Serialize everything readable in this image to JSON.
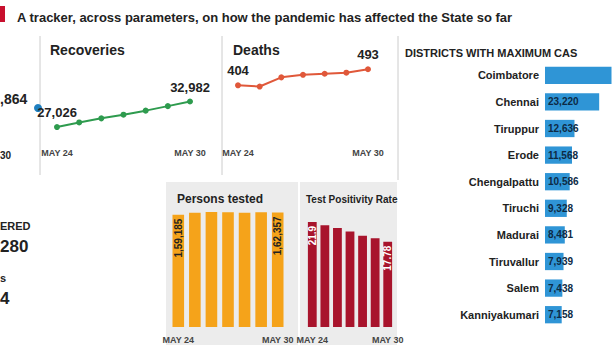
{
  "header": {
    "title": "A tracker, across parameters, on how the pandemic has affected the State so far"
  },
  "fragments": [
    ",864",
    "30",
    "ERED",
    "280",
    "s",
    "4"
  ],
  "chart_data": [
    {
      "type": "line",
      "title": "Recoveries",
      "categories": [
        "MAY 24",
        null,
        null,
        null,
        null,
        null,
        "MAY 30"
      ],
      "values": [
        27026,
        28100,
        29050,
        29900,
        30850,
        31900,
        32982
      ],
      "value_labels": [
        "27,026",
        null,
        null,
        null,
        null,
        null,
        "32,982"
      ],
      "data_labels": true,
      "color": "#2e9b4e",
      "marker": "circle",
      "line_style": "solid",
      "ylim": [
        24000,
        38000
      ],
      "tick_labels": "x",
      "grid": false
    },
    {
      "type": "line",
      "title": "Deaths",
      "categories": [
        "MAY 24",
        null,
        null,
        null,
        null,
        null,
        "MAY 30"
      ],
      "values": [
        404,
        397,
        448,
        462,
        468,
        474,
        493
      ],
      "value_labels": [
        "404",
        null,
        null,
        null,
        null,
        null,
        "493"
      ],
      "data_labels": true,
      "color": "#e0583a",
      "marker": "circle",
      "line_style": "solid",
      "ylim": [
        100,
        600
      ],
      "tick_labels": "x",
      "grid": false
    },
    {
      "type": "bar",
      "title": "Persons tested",
      "categories": [
        "MAY 24",
        null,
        null,
        null,
        null,
        null,
        "MAY 30"
      ],
      "values": [
        159185,
        161800,
        162900,
        162400,
        161900,
        162600,
        162357
      ],
      "value_labels": [
        "1,59,185",
        null,
        null,
        null,
        null,
        null,
        "1,62,357"
      ],
      "data_labels": true,
      "color": "#f5a31a",
      "ylim": [
        0,
        170000
      ],
      "tick_labels": "x",
      "grid": false
    },
    {
      "type": "bar",
      "title": "Test Positivity Rate",
      "categories": [
        "MAY 24",
        null,
        null,
        null,
        null,
        null,
        "MAY 30"
      ],
      "values": [
        21.9,
        21.2,
        20.6,
        19.9,
        19.0,
        18.5,
        17.78
      ],
      "value_labels": [
        "21.9",
        null,
        null,
        null,
        null,
        null,
        "17.78"
      ],
      "data_labels": true,
      "color": "#a8142c",
      "ylim": [
        0,
        25
      ],
      "tick_labels": "x",
      "grid": false
    },
    {
      "type": "bar",
      "title": "DISTRICTS WITH MAXIMUM CAS",
      "orientation": "horizontal",
      "categories": [
        "Coimbatore",
        "Chennai",
        "Tiruppur",
        "Erode",
        "Chengalpattu",
        "Tiruchi",
        "Madurai",
        "Tiruvallur",
        "Salem",
        "Kanniyakumari"
      ],
      "values": [
        28500,
        23220,
        12636,
        11568,
        10586,
        9328,
        8481,
        7939,
        7438,
        7158
      ],
      "value_labels": [
        null,
        "23,220",
        "12,636",
        "11,568",
        "10,586",
        "9,328",
        "8,481",
        "7,939",
        "7,438",
        "7,158"
      ],
      "data_labels": true,
      "color": "#2f95d6",
      "xlim": [
        0,
        30000
      ],
      "tick_labels": "y",
      "grid": false
    }
  ]
}
